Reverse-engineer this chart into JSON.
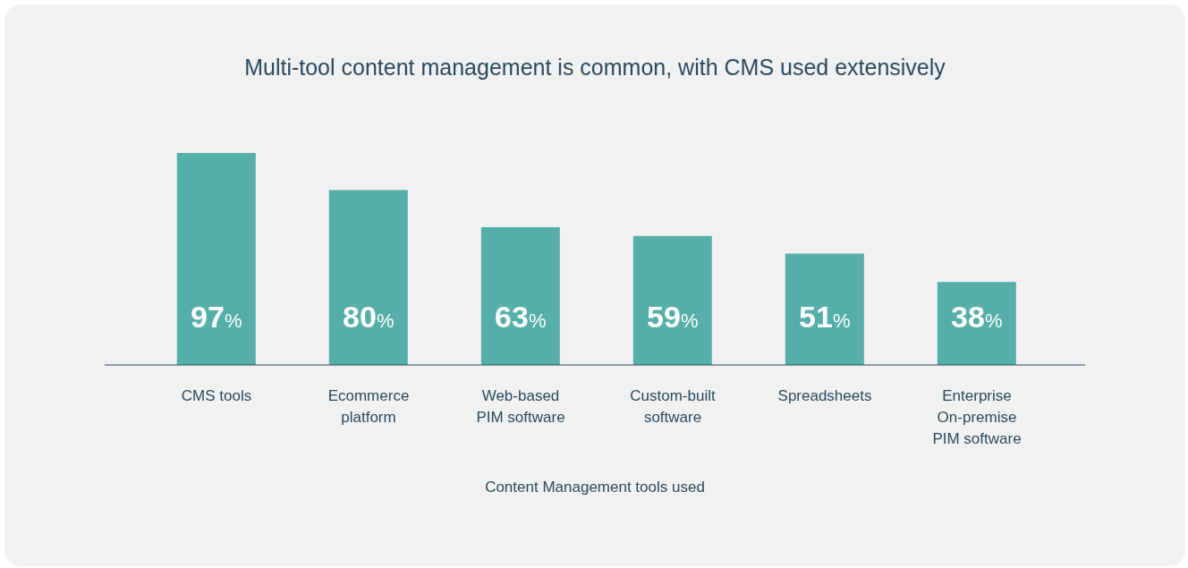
{
  "chart_data": {
    "type": "bar",
    "title": "Multi-tool content management is common, with CMS used extensively",
    "xlabel": "Content Management tools used",
    "categories": [
      "CMS tools",
      "Ecommerce platform",
      "Web-based PIM software",
      "Custom-built software",
      "Spreadsheets",
      "Enterprise On-premise PIM software"
    ],
    "values": [
      97,
      80,
      63,
      59,
      51,
      38
    ],
    "value_labels": [
      "97%",
      "80%",
      "63%",
      "59%",
      "51%",
      "38%"
    ],
    "color": "#55aea8",
    "grid": false,
    "legend": false
  }
}
